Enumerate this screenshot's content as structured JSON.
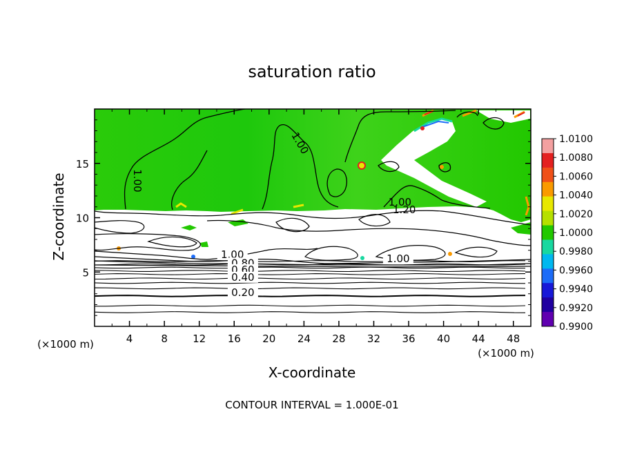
{
  "chart_data": {
    "type": "heatmap",
    "title": "saturation ratio",
    "xlabel": "X-coordinate",
    "ylabel": "Z-coordinate",
    "x_unit": "(×1000 m)",
    "z_unit": "(×1000 m)",
    "footer": "CONTOUR INTERVAL = 1.000E-01",
    "xlim": [
      0,
      50
    ],
    "ylim": [
      0,
      20
    ],
    "x_ticks": [
      4,
      8,
      12,
      16,
      20,
      24,
      28,
      32,
      36,
      40,
      44,
      48
    ],
    "y_ticks": [
      5,
      10,
      15
    ],
    "colorbar": {
      "ticks": [
        "1.0100",
        "1.0080",
        "1.0060",
        "1.0040",
        "1.0020",
        "1.0000",
        "0.9980",
        "0.9960",
        "0.9940",
        "0.9920",
        "0.9900"
      ],
      "colors": [
        "#f4a0a0",
        "#e42020",
        "#f05018",
        "#fa9a00",
        "#e8e800",
        "#b6e000",
        "#22c800",
        "#18d8a0",
        "#00b8f0",
        "#1c6cf8",
        "#1818d8",
        "#2000a0",
        "#6000b0"
      ]
    },
    "regions": {
      "moist_layer_top_z": 10.8,
      "moist_layer_color": "#22c800",
      "dry_color": "#ffffff"
    },
    "contour_labels": [
      {
        "text": "1.00",
        "x": 4.5,
        "z": 13.4
      },
      {
        "text": "1.00",
        "x": 23.2,
        "z": 16.7
      },
      {
        "text": "1.00",
        "x": 35.0,
        "z": 11.1
      },
      {
        "text": "1.20",
        "x": 35.5,
        "z": 10.4
      },
      {
        "text": "1.00",
        "x": 15.8,
        "z": 6.3
      },
      {
        "text": "0.80",
        "x": 17.0,
        "z": 5.5
      },
      {
        "text": "0.60",
        "x": 17.0,
        "z": 4.9
      },
      {
        "text": "0.40",
        "x": 17.0,
        "z": 4.2
      },
      {
        "text": "0.20",
        "x": 17.0,
        "z": 2.8
      },
      {
        "text": "1.00",
        "x": 34.8,
        "z": 5.9
      }
    ],
    "horizontal_contour_levels_z": [
      1.3,
      1.9,
      2.8,
      3.5,
      4.0,
      4.4,
      4.8,
      5.1,
      5.4,
      5.7,
      6.0
    ]
  }
}
